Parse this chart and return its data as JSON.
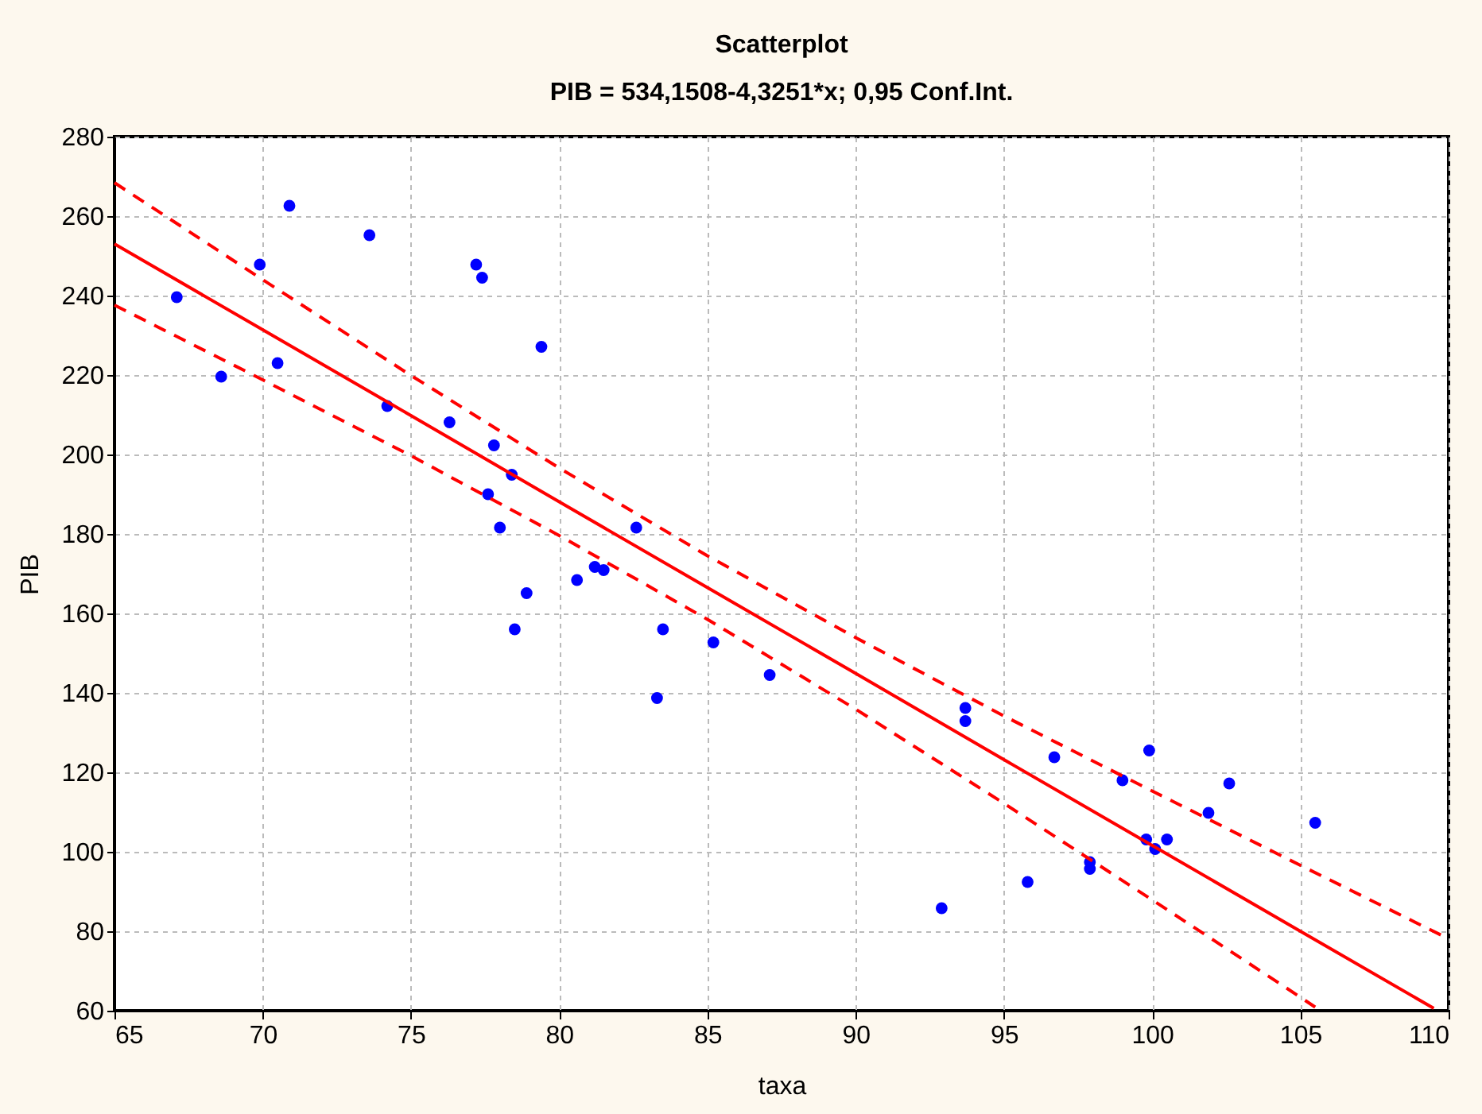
{
  "chart_data": {
    "type": "scatter",
    "title": "Scatterplot",
    "subtitle": "PIB = 534,1508-4,3251*x; 0,95 Conf.Int.",
    "xlabel": "taxa",
    "ylabel": "PIB",
    "x": [
      67.1,
      68.6,
      69.9,
      70.9,
      70.5,
      73.6,
      74.2,
      76.3,
      77.2,
      77.4,
      77.8,
      78.4,
      77.6,
      78.0,
      79.4,
      78.9,
      78.5,
      80.6,
      81.2,
      81.5,
      82.6,
      83.5,
      85.2,
      83.3,
      87.1,
      93.7,
      93.7,
      92.9,
      95.8,
      96.7,
      97.9,
      97.9,
      99.0,
      99.9,
      99.8,
      100.1,
      100.5,
      101.9,
      102.6,
      105.5
    ],
    "series": [
      {
        "color": "#0000ff",
        "marker": "circle",
        "values": [
          239.6,
          219.6,
          247.8,
          262.6,
          223,
          255.2,
          212.2,
          208.1,
          247.8,
          244.5,
          202.3,
          194.9,
          190,
          181.6,
          227.1,
          165.1,
          156,
          168.4,
          171.7,
          170.9,
          181.6,
          156,
          152.7,
          138.7,
          144.5,
          136.2,
          132.9,
          85.8,
          92.4,
          123.8,
          97.4,
          95.7,
          118,
          125.5,
          103.1,
          100.7,
          103.1,
          109.8,
          117.2,
          107.3
        ]
      },
      {
        "type": "line",
        "color": "#ff0000",
        "line_style": "solid",
        "x": [
          65,
          70,
          75,
          80,
          85,
          90,
          95,
          100,
          105,
          109.5
        ],
        "values": [
          253.0,
          231.4,
          209.8,
          188.1,
          166.5,
          144.9,
          123.2,
          101.6,
          80.0,
          60.6
        ]
      },
      {
        "type": "line",
        "color": "#ff0000",
        "line_style": "dashed",
        "x": [
          65,
          70,
          75,
          80,
          85,
          90,
          95,
          100,
          105,
          110
        ],
        "values": [
          268.4,
          244.0,
          219.9,
          196.6,
          174.5,
          153.9,
          134.2,
          115.3,
          96.6,
          78.1
        ]
      },
      {
        "type": "line",
        "color": "#ff0000",
        "line_style": "dashed",
        "x": [
          65,
          70,
          75,
          80,
          85,
          90,
          95,
          100,
          105,
          105.5
        ],
        "values": [
          237.6,
          218.8,
          199.7,
          179.6,
          158.5,
          135.9,
          112.2,
          87.9,
          63.4,
          60.9
        ]
      }
    ],
    "xlim": [
      65,
      110
    ],
    "ylim": [
      60,
      280
    ],
    "xticks": [
      65,
      70,
      75,
      80,
      85,
      90,
      95,
      100,
      105,
      110
    ],
    "yticks": [
      60,
      80,
      100,
      120,
      140,
      160,
      180,
      200,
      220,
      240,
      260,
      280
    ],
    "grid": true
  }
}
